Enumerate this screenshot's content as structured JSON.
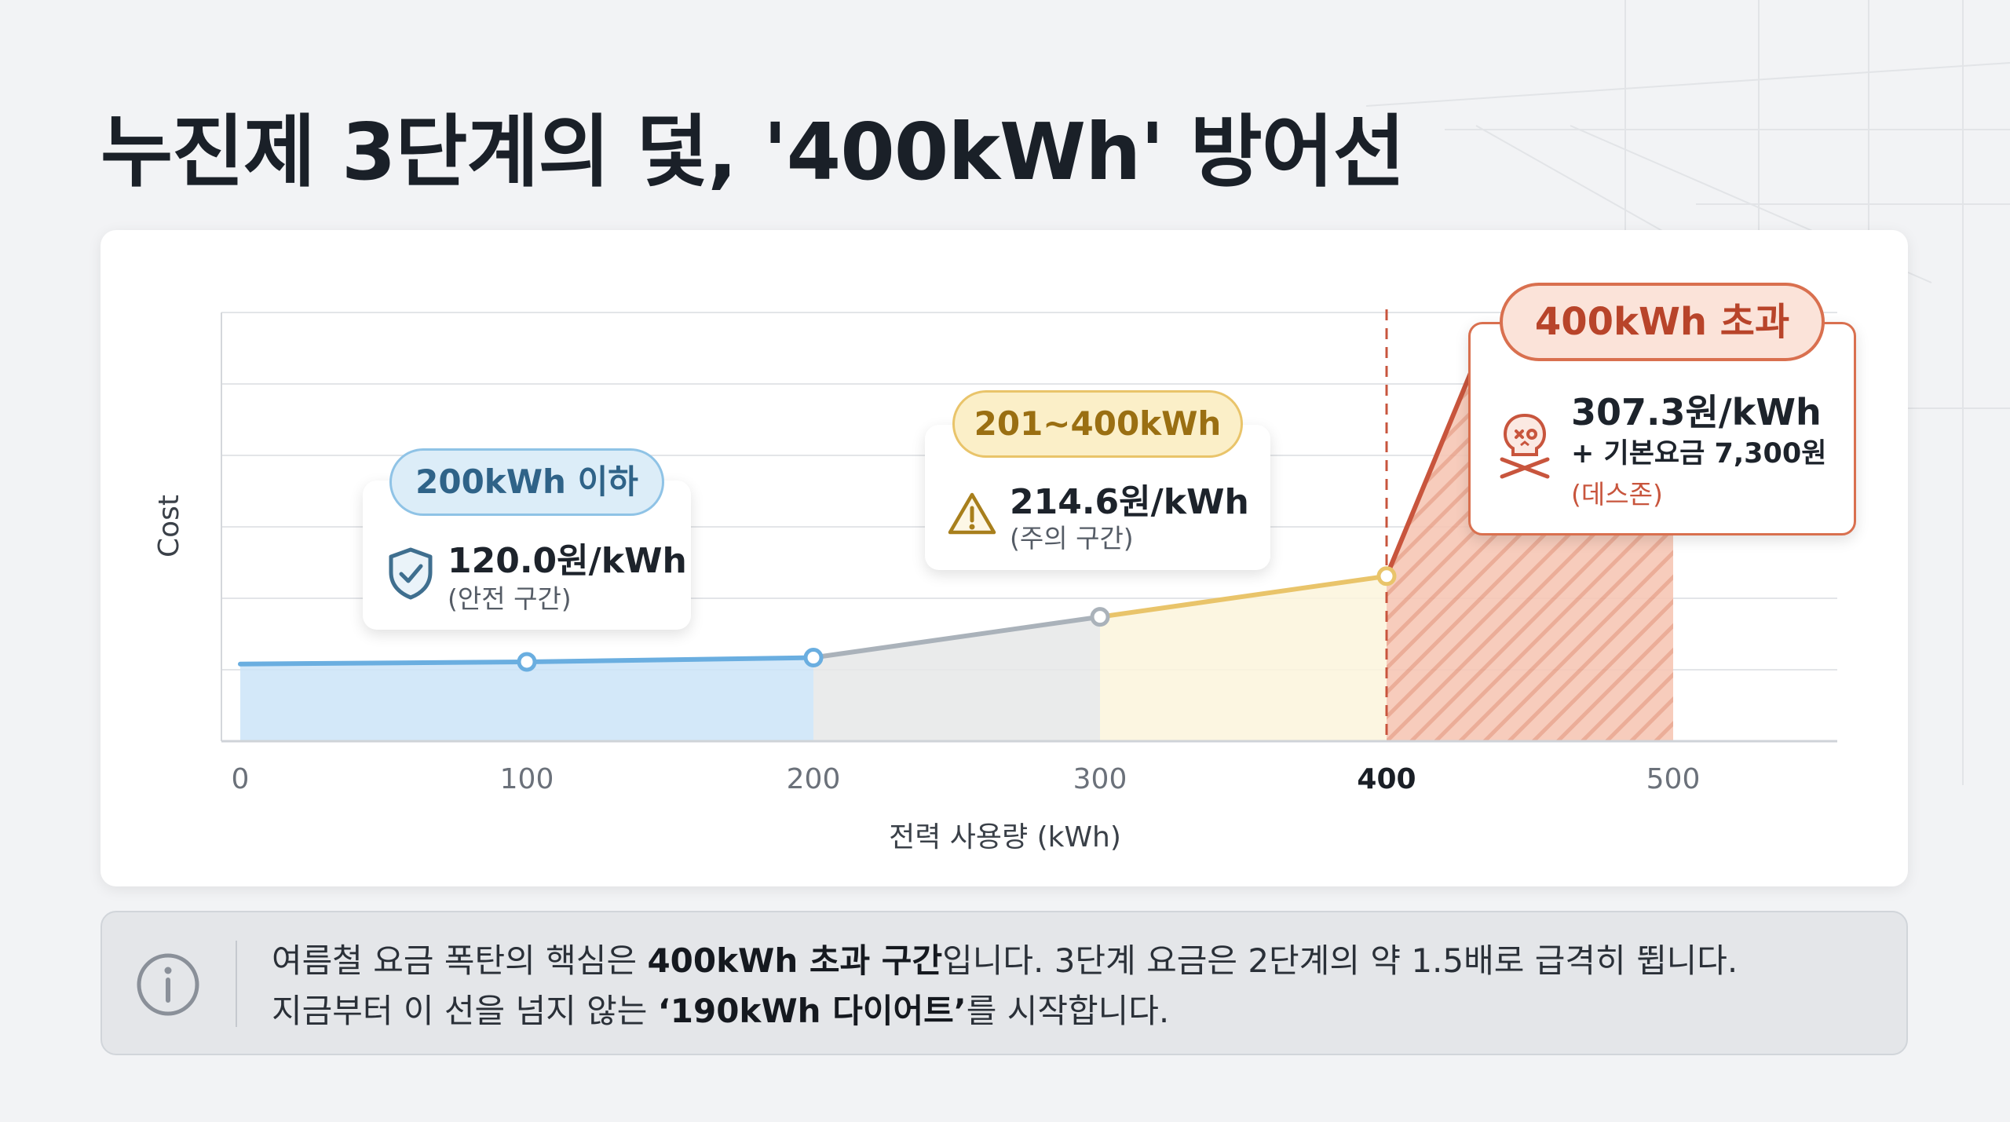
{
  "title": "누진제 3단계의 덫, '400kWh' 방어선",
  "colors": {
    "tier1": "#6aaee0",
    "tier2": "#aab2ba",
    "tier3": "#e9c46a",
    "tier4": "#c8553d",
    "background": "#f2f3f5"
  },
  "chart_data": {
    "type": "line",
    "xlabel": "전력 사용량 (kWh)",
    "ylabel": "Cost",
    "x_ticks": [
      "0",
      "100",
      "200",
      "300",
      "400",
      "500"
    ],
    "xlim": [
      0,
      560
    ],
    "ylim": [
      0,
      100
    ],
    "grid": true,
    "threshold_x": 400,
    "points": [
      {
        "x": 0,
        "y": 18
      },
      {
        "x": 100,
        "y": 18.5
      },
      {
        "x": 200,
        "y": 19.5
      },
      {
        "x": 300,
        "y": 29
      },
      {
        "x": 400,
        "y": 38.5
      },
      {
        "x": 430,
        "y": 87
      }
    ],
    "marker_x": [
      100,
      200,
      300,
      400
    ],
    "segments": [
      {
        "from": 0,
        "to": 200,
        "color": "tier1"
      },
      {
        "from": 200,
        "to": 300,
        "color": "tier2"
      },
      {
        "from": 300,
        "to": 400,
        "color": "tier3"
      },
      {
        "from": 400,
        "to": 430,
        "color": "tier4"
      }
    ],
    "bands": [
      {
        "from": 0,
        "to": 200,
        "fill": "#cbe4f8"
      },
      {
        "from": 200,
        "to": 300,
        "fill": "#e6e7e7"
      },
      {
        "from": 300,
        "to": 400,
        "fill": "#fbf4dc"
      },
      {
        "from": 400,
        "to": 500,
        "fill": "#f6c6b5",
        "hatched": true
      }
    ],
    "annotations": [
      {
        "tag": "200kWh 이하",
        "price": "120.0원/kWh",
        "note": "(안전 구간)",
        "icon": "shield-check-icon"
      },
      {
        "tag": "201~400kWh",
        "price": "214.6원/kWh",
        "note": "(주의 구간)",
        "icon": "warning-triangle-icon"
      },
      {
        "tag": "400kWh 초과",
        "price": "307.3원/kWh",
        "extra": "+ 기본요금 7,300원",
        "note": "(데스존)",
        "icon": "skull-crossbones-icon"
      }
    ]
  },
  "info": {
    "icon": "info-circle-icon",
    "line1_pre": "여름철 요금 폭탄의 핵심은 ",
    "line1_bold": "400kWh 초과 구간",
    "line1_post": "입니다. 3단계 요금은 2단계의 약 1.5배로 급격히 뜁니다.",
    "line2_pre": "지금부터 이 선을 넘지 않는 ",
    "line2_bold": "‘190kWh 다이어트’",
    "line2_post": "를 시작합니다."
  }
}
